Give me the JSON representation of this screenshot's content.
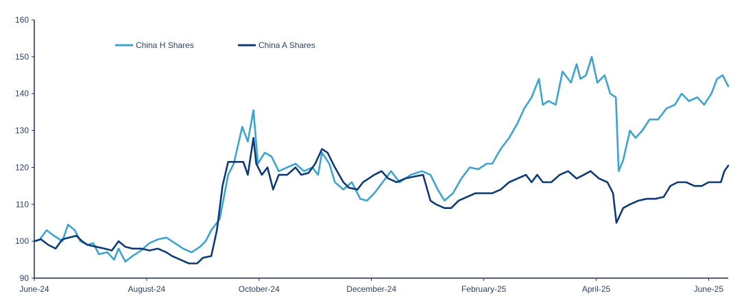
{
  "chart_data": {
    "type": "line",
    "title": "",
    "xlabel": "",
    "ylabel": "",
    "ylim": [
      90,
      160
    ],
    "y_ticks": [
      "160",
      "150",
      "140",
      "130",
      "120",
      "110",
      "100",
      "90"
    ],
    "x_tick_labels": [
      "June-24",
      "August-24",
      "October-24",
      "December-24",
      "February-25",
      "April-25",
      "June-25"
    ],
    "x_tick_index": [
      0,
      2,
      4,
      6,
      8,
      10,
      12
    ],
    "x_domain": [
      0,
      12.35
    ],
    "grid": false,
    "legend_position": "top-left",
    "series": [
      {
        "name": "China H Shares",
        "color": "#3aa3d1",
        "points": [
          [
            0,
            100
          ],
          [
            0.1,
            100.5
          ],
          [
            0.22,
            103
          ],
          [
            0.35,
            101.5
          ],
          [
            0.5,
            100
          ],
          [
            0.6,
            104.5
          ],
          [
            0.72,
            103
          ],
          [
            0.82,
            100
          ],
          [
            0.95,
            99
          ],
          [
            1.05,
            99.5
          ],
          [
            1.15,
            96.5
          ],
          [
            1.3,
            97
          ],
          [
            1.42,
            95
          ],
          [
            1.5,
            98
          ],
          [
            1.62,
            94.5
          ],
          [
            1.75,
            96
          ],
          [
            1.9,
            97.5
          ],
          [
            2.05,
            99.5
          ],
          [
            2.2,
            100.5
          ],
          [
            2.35,
            101
          ],
          [
            2.5,
            99.5
          ],
          [
            2.65,
            98
          ],
          [
            2.8,
            97
          ],
          [
            2.95,
            98.5
          ],
          [
            3.05,
            100
          ],
          [
            3.15,
            103
          ],
          [
            3.3,
            106
          ],
          [
            3.45,
            118
          ],
          [
            3.55,
            121
          ],
          [
            3.7,
            131
          ],
          [
            3.8,
            127
          ],
          [
            3.9,
            135.5
          ],
          [
            3.98,
            121
          ],
          [
            4.1,
            124
          ],
          [
            4.22,
            123
          ],
          [
            4.35,
            119
          ],
          [
            4.5,
            120
          ],
          [
            4.65,
            121
          ],
          [
            4.8,
            119
          ],
          [
            4.95,
            120
          ],
          [
            5.05,
            118
          ],
          [
            5.12,
            124
          ],
          [
            5.25,
            121
          ],
          [
            5.35,
            116
          ],
          [
            5.5,
            114
          ],
          [
            5.65,
            116
          ],
          [
            5.8,
            111.5
          ],
          [
            5.92,
            111
          ],
          [
            6.05,
            113
          ],
          [
            6.2,
            116
          ],
          [
            6.35,
            119
          ],
          [
            6.5,
            116
          ],
          [
            6.7,
            118
          ],
          [
            6.9,
            119
          ],
          [
            7.05,
            118
          ],
          [
            7.18,
            114
          ],
          [
            7.3,
            111
          ],
          [
            7.45,
            113
          ],
          [
            7.6,
            117
          ],
          [
            7.75,
            120
          ],
          [
            7.9,
            119.5
          ],
          [
            8.05,
            121
          ],
          [
            8.15,
            121
          ],
          [
            8.3,
            125
          ],
          [
            8.45,
            128
          ],
          [
            8.6,
            132
          ],
          [
            8.72,
            136
          ],
          [
            8.85,
            139
          ],
          [
            8.98,
            144
          ],
          [
            9.05,
            137
          ],
          [
            9.15,
            138
          ],
          [
            9.28,
            137
          ],
          [
            9.4,
            146
          ],
          [
            9.55,
            143
          ],
          [
            9.65,
            148
          ],
          [
            9.72,
            144
          ],
          [
            9.82,
            145
          ],
          [
            9.92,
            150
          ],
          [
            10.02,
            143
          ],
          [
            10.15,
            145
          ],
          [
            10.25,
            140
          ],
          [
            10.35,
            139
          ],
          [
            10.4,
            119
          ],
          [
            10.48,
            122
          ],
          [
            10.6,
            130
          ],
          [
            10.7,
            128
          ],
          [
            10.82,
            130
          ],
          [
            10.95,
            133
          ],
          [
            11.1,
            133
          ],
          [
            11.25,
            136
          ],
          [
            11.4,
            137
          ],
          [
            11.52,
            140
          ],
          [
            11.65,
            138
          ],
          [
            11.8,
            139
          ],
          [
            11.92,
            137
          ],
          [
            12.05,
            140
          ],
          [
            12.15,
            144
          ],
          [
            12.25,
            145
          ],
          [
            12.35,
            142
          ]
        ]
      },
      {
        "name": "China A Shares",
        "color": "#0c3a78",
        "points": [
          [
            0,
            100
          ],
          [
            0.12,
            100.5
          ],
          [
            0.25,
            99
          ],
          [
            0.38,
            98
          ],
          [
            0.5,
            100.5
          ],
          [
            0.62,
            101
          ],
          [
            0.75,
            101.5
          ],
          [
            0.85,
            100
          ],
          [
            0.95,
            99
          ],
          [
            1.1,
            98.5
          ],
          [
            1.25,
            98
          ],
          [
            1.38,
            97.5
          ],
          [
            1.5,
            100
          ],
          [
            1.62,
            98.5
          ],
          [
            1.75,
            98
          ],
          [
            1.9,
            98
          ],
          [
            2.05,
            97.5
          ],
          [
            2.2,
            98
          ],
          [
            2.35,
            97
          ],
          [
            2.45,
            96
          ],
          [
            2.6,
            95
          ],
          [
            2.75,
            94
          ],
          [
            2.9,
            94
          ],
          [
            3.0,
            95.5
          ],
          [
            3.15,
            96
          ],
          [
            3.25,
            103
          ],
          [
            3.35,
            115
          ],
          [
            3.45,
            121.5
          ],
          [
            3.6,
            121.5
          ],
          [
            3.72,
            121.5
          ],
          [
            3.8,
            118
          ],
          [
            3.9,
            128
          ],
          [
            3.95,
            121
          ],
          [
            4.05,
            118
          ],
          [
            4.15,
            120
          ],
          [
            4.25,
            114
          ],
          [
            4.35,
            118
          ],
          [
            4.5,
            118
          ],
          [
            4.65,
            120
          ],
          [
            4.75,
            118
          ],
          [
            4.88,
            118.5
          ],
          [
            5.0,
            121
          ],
          [
            5.12,
            125
          ],
          [
            5.22,
            124
          ],
          [
            5.35,
            120
          ],
          [
            5.5,
            116
          ],
          [
            5.6,
            114.5
          ],
          [
            5.75,
            114
          ],
          [
            5.85,
            116
          ],
          [
            5.95,
            117
          ],
          [
            6.05,
            118
          ],
          [
            6.18,
            119
          ],
          [
            6.3,
            117
          ],
          [
            6.45,
            116
          ],
          [
            6.6,
            117
          ],
          [
            6.75,
            117.5
          ],
          [
            6.92,
            118
          ],
          [
            7.05,
            111
          ],
          [
            7.15,
            110
          ],
          [
            7.3,
            109
          ],
          [
            7.42,
            109
          ],
          [
            7.55,
            111
          ],
          [
            7.7,
            112
          ],
          [
            7.85,
            113
          ],
          [
            8.0,
            113
          ],
          [
            8.15,
            113
          ],
          [
            8.3,
            114
          ],
          [
            8.45,
            116
          ],
          [
            8.6,
            117
          ],
          [
            8.75,
            118
          ],
          [
            8.85,
            116
          ],
          [
            8.95,
            118
          ],
          [
            9.05,
            116
          ],
          [
            9.2,
            116
          ],
          [
            9.35,
            118
          ],
          [
            9.5,
            119
          ],
          [
            9.65,
            117
          ],
          [
            9.78,
            118
          ],
          [
            9.9,
            119
          ],
          [
            10.05,
            117
          ],
          [
            10.2,
            116
          ],
          [
            10.3,
            113
          ],
          [
            10.36,
            105
          ],
          [
            10.48,
            109
          ],
          [
            10.6,
            110
          ],
          [
            10.75,
            111
          ],
          [
            10.9,
            111.5
          ],
          [
            11.05,
            111.5
          ],
          [
            11.2,
            112
          ],
          [
            11.32,
            115
          ],
          [
            11.45,
            116
          ],
          [
            11.6,
            116
          ],
          [
            11.75,
            115
          ],
          [
            11.88,
            115
          ],
          [
            12.0,
            116
          ],
          [
            12.12,
            116
          ],
          [
            12.22,
            116
          ],
          [
            12.28,
            119
          ],
          [
            12.35,
            120.5
          ]
        ]
      }
    ]
  }
}
